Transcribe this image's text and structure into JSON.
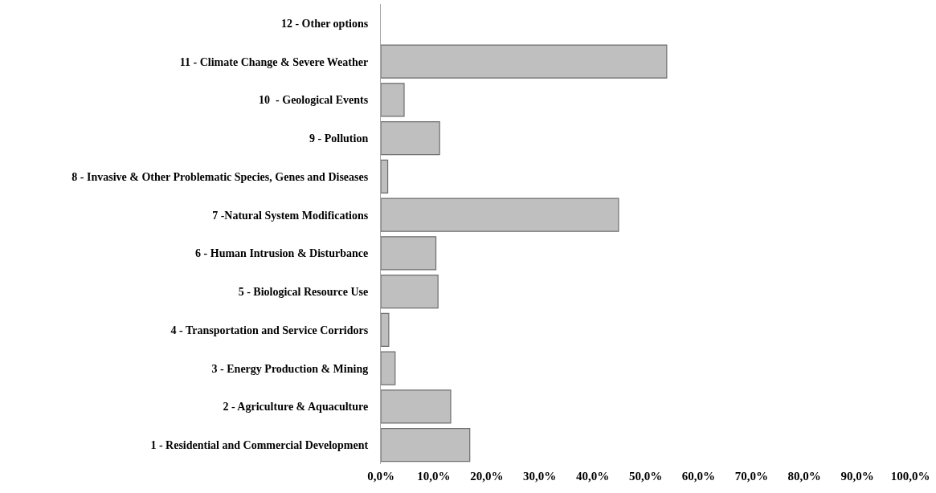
{
  "chart_data": {
    "type": "bar",
    "orientation": "horizontal",
    "categories": [
      "12 - Other options",
      "11 - Climate Change & Severe Weather",
      "10  - Geological Events",
      "9 - Pollution",
      "8 - Invasive & Other Problematic Species, Genes and Diseases",
      "7 -Natural System Modifications",
      "6 - Human Intrusion & Disturbance",
      "5 - Biological Resource Use",
      "4 - Transportation and Service Corridors",
      "3 - Energy Production & Mining",
      "2 - Agriculture & Aquaculture",
      "1 - Residential and Commercial Development"
    ],
    "values": [
      0,
      54.0,
      4.4,
      11.1,
      1.3,
      44.9,
      10.4,
      10.8,
      1.5,
      2.7,
      13.2,
      16.8
    ],
    "color": "#bfbfbf",
    "xlim": [
      0,
      100
    ],
    "xticks": [
      {
        "value": 0,
        "label": "0,0%"
      },
      {
        "value": 10,
        "label": "10,0%"
      },
      {
        "value": 20,
        "label": "20,0%"
      },
      {
        "value": 30,
        "label": "30,0%"
      },
      {
        "value": 40,
        "label": "40,0%"
      },
      {
        "value": 50,
        "label": "50,0%"
      },
      {
        "value": 60,
        "label": "60,0%"
      },
      {
        "value": 70,
        "label": "70,0%"
      },
      {
        "value": 80,
        "label": "80,0%"
      },
      {
        "value": 90,
        "label": "90,0%"
      },
      {
        "value": 100,
        "label": "100,0%"
      }
    ],
    "legend": false
  }
}
